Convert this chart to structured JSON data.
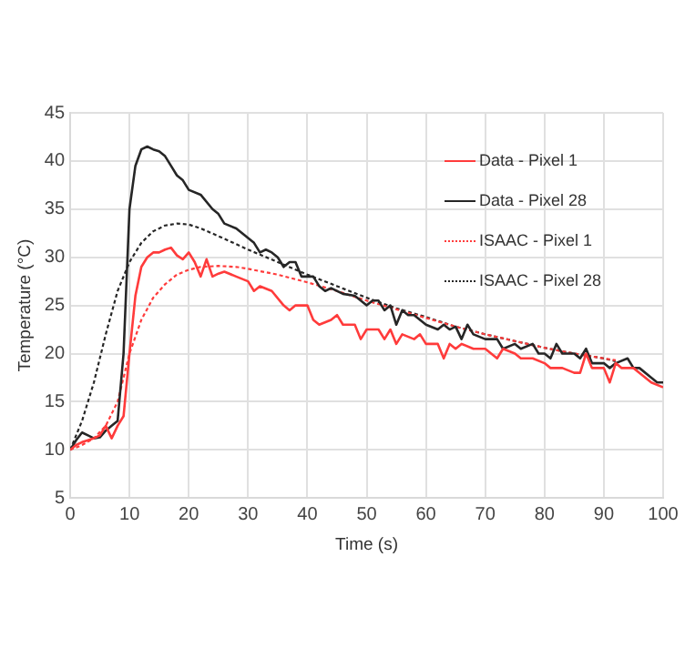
{
  "chart_data": {
    "type": "line",
    "xlabel": "Time (s)",
    "ylabel": "Temperature (°C)",
    "xlim": [
      0,
      100
    ],
    "xticks": [
      0,
      10,
      20,
      30,
      40,
      50,
      60,
      70,
      80,
      90,
      100
    ],
    "ylim": [
      5,
      45
    ],
    "yticks": [
      5,
      10,
      15,
      20,
      25,
      30,
      35,
      40,
      45
    ],
    "grid": true,
    "legend": "top right",
    "marker": "none",
    "series": [
      {
        "name": "Data - Pixel 1",
        "color": "#ff3b3b",
        "line_style": "solid",
        "x": [
          0,
          1,
          2,
          3,
          4,
          5,
          6,
          7,
          8,
          9,
          10,
          11,
          12,
          13,
          14,
          15,
          16,
          17,
          18,
          19,
          20,
          21,
          22,
          23,
          24,
          25,
          26,
          28,
          30,
          31,
          32,
          34,
          36,
          37,
          38,
          40,
          41,
          42,
          44,
          45,
          46,
          48,
          49,
          50,
          52,
          53,
          54,
          55,
          56,
          58,
          59,
          60,
          62,
          63,
          64,
          65,
          66,
          68,
          70,
          72,
          73,
          75,
          76,
          78,
          80,
          81,
          83,
          85,
          86,
          87,
          88,
          90,
          91,
          92,
          93,
          95,
          96,
          97,
          98,
          100
        ],
        "values": [
          10,
          10.5,
          10.8,
          11,
          11.2,
          11.5,
          12.5,
          11.2,
          12.5,
          13.5,
          20,
          26,
          29,
          30,
          30.5,
          30.5,
          30.8,
          31,
          30.2,
          29.8,
          30.5,
          29.5,
          28,
          29.8,
          28,
          28.3,
          28.5,
          28,
          27.5,
          26.5,
          27,
          26.5,
          25,
          24.5,
          25,
          25,
          23.5,
          23,
          23.5,
          24,
          23,
          23,
          21.5,
          22.5,
          22.5,
          21.5,
          22.5,
          21,
          22,
          21.5,
          22,
          21,
          21,
          19.5,
          21,
          20.5,
          21,
          20.5,
          20.5,
          19.5,
          20.5,
          20,
          19.5,
          19.5,
          19,
          18.5,
          18.5,
          18,
          18,
          20,
          18.5,
          18.5,
          17,
          19,
          18.5,
          18.5,
          18,
          17.5,
          17,
          16.5
        ]
      },
      {
        "name": "Data - Pixel 28",
        "color": "#262626",
        "line_style": "solid",
        "x": [
          0,
          1,
          2,
          3,
          4,
          5,
          6,
          7,
          8,
          9,
          10,
          11,
          12,
          13,
          14,
          15,
          16,
          17,
          18,
          19,
          20,
          22,
          24,
          25,
          26,
          28,
          30,
          31,
          32,
          33,
          34,
          35,
          36,
          37,
          38,
          39,
          40,
          41,
          42,
          43,
          44,
          46,
          48,
          50,
          51,
          52,
          53,
          54,
          55,
          56,
          57,
          58,
          60,
          62,
          63,
          64,
          65,
          66,
          67,
          68,
          70,
          72,
          73,
          75,
          76,
          78,
          79,
          80,
          81,
          82,
          83,
          85,
          86,
          87,
          88,
          89,
          90,
          91,
          92,
          94,
          95,
          96,
          98,
          99,
          100
        ],
        "values": [
          10,
          11,
          11.8,
          11.5,
          11.2,
          11.3,
          12,
          12.5,
          13,
          20,
          35,
          39.5,
          41.2,
          41.5,
          41.2,
          41,
          40.5,
          39.5,
          38.5,
          38,
          37,
          36.5,
          35,
          34.5,
          33.5,
          33,
          32,
          31.5,
          30.5,
          30.8,
          30.5,
          30,
          29,
          29.5,
          29.5,
          28,
          28,
          28,
          27,
          26.5,
          26.8,
          26.2,
          26,
          25,
          25.5,
          25.5,
          24.5,
          25,
          23,
          24.5,
          24,
          24,
          23,
          22.5,
          23,
          22.5,
          22.8,
          21.5,
          23,
          22,
          21.5,
          21.5,
          20.5,
          21,
          20.5,
          21,
          20,
          20,
          19.5,
          21,
          20,
          20,
          19.5,
          20.5,
          19,
          19,
          19,
          18.5,
          19,
          19.5,
          18.5,
          18.5,
          17.5,
          17,
          17
        ]
      },
      {
        "name": "ISAAC - Pixel 1",
        "color": "#ff3b3b",
        "line_style": "dotted",
        "x": [
          0,
          2,
          4,
          6,
          8,
          10,
          12,
          14,
          16,
          18,
          20,
          22,
          25,
          28,
          30,
          35,
          40,
          45,
          50,
          55,
          60,
          65,
          70,
          75,
          80,
          85,
          90,
          92
        ],
        "values": [
          10,
          10.5,
          11.2,
          12.5,
          15,
          20,
          23.5,
          25.8,
          27.2,
          28.2,
          28.7,
          29,
          29.1,
          29,
          28.8,
          28.2,
          27.4,
          26.5,
          25.5,
          24.6,
          23.7,
          22.8,
          22,
          21.3,
          20.6,
          20,
          19.5,
          19.3
        ]
      },
      {
        "name": "ISAAC - Pixel 28",
        "color": "#262626",
        "line_style": "dotted",
        "x": [
          0,
          2,
          4,
          6,
          8,
          10,
          12,
          14,
          16,
          18,
          20,
          22,
          25,
          30,
          35,
          40,
          45,
          50,
          55,
          60,
          65,
          70,
          75,
          80,
          85,
          90,
          92
        ],
        "values": [
          10,
          13,
          17,
          22,
          26.5,
          29.5,
          31.5,
          32.7,
          33.3,
          33.5,
          33.4,
          33,
          32.2,
          30.8,
          29.5,
          28.2,
          27,
          25.8,
          24.7,
          23.8,
          22.8,
          22,
          21.3,
          20.6,
          20,
          19.5,
          19.2
        ]
      }
    ]
  }
}
